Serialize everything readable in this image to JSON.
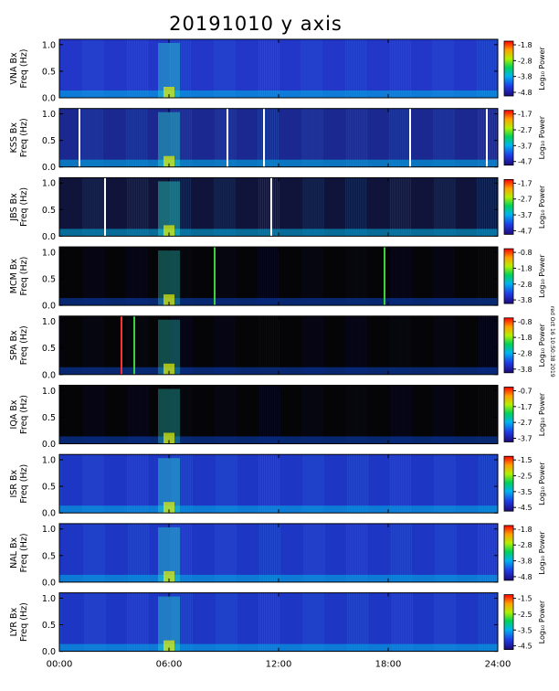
{
  "chart_data": {
    "type": "heatmap",
    "title": "20191010 y axis",
    "credit": "red Oct 16 10:50:38 2019",
    "xticks": [
      "00:00",
      "06:00",
      "12:00",
      "18:00",
      "24:00"
    ],
    "xlim": [
      0,
      24
    ],
    "panels": [
      {
        "station": "VNA",
        "ylabel1": "VNA Bx",
        "ylabel2": "Freq (Hz)",
        "yticks": [
          "0.0",
          "0.5",
          "1.0"
        ],
        "ylim": [
          0,
          1.1
        ],
        "cbar": [
          "-1.8",
          "-2.8",
          "-3.8",
          "-4.8"
        ],
        "clim": [
          -4.8,
          -1.8
        ],
        "cbar_label": "Log₁₀ Power",
        "style": "vna",
        "lines": []
      },
      {
        "station": "KSS",
        "ylabel1": "KSS Bx",
        "ylabel2": "Freq (Hz)",
        "yticks": [
          "0.0",
          "0.5",
          "1.0"
        ],
        "ylim": [
          0,
          1.1
        ],
        "cbar": [
          "-1.7",
          "-2.7",
          "-3.7",
          "-4.7"
        ],
        "clim": [
          -4.7,
          -1.7
        ],
        "cbar_label": "Log₁₀ Power",
        "style": "kss",
        "lines": [
          {
            "t": 1.1,
            "color": "#ffffff"
          },
          {
            "t": 9.2,
            "color": "#ffffff"
          },
          {
            "t": 11.2,
            "color": "#ffffff"
          },
          {
            "t": 19.2,
            "color": "#ffffff"
          },
          {
            "t": 23.4,
            "color": "#ffffff"
          }
        ]
      },
      {
        "station": "JBS",
        "ylabel1": "JBS Bx",
        "ylabel2": "Freq (Hz)",
        "yticks": [
          "0.0",
          "0.5",
          "1.0"
        ],
        "ylim": [
          0,
          1.1
        ],
        "cbar": [
          "-1.7",
          "-2.7",
          "-3.7",
          "-4.7"
        ],
        "clim": [
          -4.7,
          -1.7
        ],
        "cbar_label": "Log₁₀ Power",
        "style": "dark",
        "lines": [
          {
            "t": 2.5,
            "color": "#ffffff"
          },
          {
            "t": 11.6,
            "color": "#ffffff"
          }
        ]
      },
      {
        "station": "MCM",
        "ylabel1": "MCM Bx",
        "ylabel2": "Freq (Hz)",
        "yticks": [
          "0.0",
          "0.5",
          "1.0"
        ],
        "ylim": [
          0,
          1.1
        ],
        "cbar": [
          "-0.8",
          "-1.8",
          "-2.8",
          "-3.8"
        ],
        "clim": [
          -3.8,
          -0.8
        ],
        "cbar_label": "Log₁₀ Power",
        "style": "black",
        "lines": [
          {
            "t": 8.5,
            "color": "#3cd23c"
          },
          {
            "t": 17.8,
            "color": "#3cd23c"
          }
        ]
      },
      {
        "station": "SPA",
        "ylabel1": "SPA Bx",
        "ylabel2": "Freq (Hz)",
        "yticks": [
          "0.0",
          "0.5",
          "1.0"
        ],
        "ylim": [
          0,
          1.1
        ],
        "cbar": [
          "-0.8",
          "-1.8",
          "-2.8",
          "-3.8"
        ],
        "clim": [
          -3.8,
          -0.8
        ],
        "cbar_label": "Log₁₀ Power",
        "style": "black",
        "lines": [
          {
            "t": 3.4,
            "color": "#ff3030"
          },
          {
            "t": 4.1,
            "color": "#3cd23c"
          }
        ]
      },
      {
        "station": "IQA",
        "ylabel1": "IQA Bx",
        "ylabel2": "Freq (Hz)",
        "yticks": [
          "0.0",
          "0.5",
          "1.0"
        ],
        "ylim": [
          0,
          1.1
        ],
        "cbar": [
          "-0.7",
          "-1.7",
          "-2.7",
          "-3.7"
        ],
        "clim": [
          -3.7,
          -0.7
        ],
        "cbar_label": "Log₁₀ Power",
        "style": "black",
        "lines": []
      },
      {
        "station": "ISR",
        "ylabel1": "ISR Bx",
        "ylabel2": "Freq (Hz)",
        "yticks": [
          "0.0",
          "0.5",
          "1.0"
        ],
        "ylim": [
          0,
          1.1
        ],
        "cbar": [
          "-1.5",
          "-2.5",
          "-3.5",
          "-4.5"
        ],
        "clim": [
          -4.5,
          -1.5
        ],
        "cbar_label": "Log₁₀ Power",
        "style": "blue",
        "lines": []
      },
      {
        "station": "NAL",
        "ylabel1": "NAL Bx",
        "ylabel2": "Freq (Hz)",
        "yticks": [
          "0.0",
          "0.5",
          "1.0"
        ],
        "ylim": [
          0,
          1.1
        ],
        "cbar": [
          "-1.8",
          "-2.8",
          "-3.8",
          "-4.8"
        ],
        "clim": [
          -4.8,
          -1.8
        ],
        "cbar_label": "Log₁₀ Power",
        "style": "blue",
        "lines": []
      },
      {
        "station": "LYR",
        "ylabel1": "LYR Bx",
        "ylabel2": "Freq (Hz)",
        "yticks": [
          "0.0",
          "0.5",
          "1.0"
        ],
        "ylim": [
          0,
          1.1
        ],
        "cbar": [
          "-1.5",
          "-2.5",
          "-3.5",
          "-4.5"
        ],
        "clim": [
          -4.5,
          -1.5
        ],
        "cbar_label": "Log₁₀ Power",
        "style": "blue",
        "lines": []
      }
    ]
  }
}
